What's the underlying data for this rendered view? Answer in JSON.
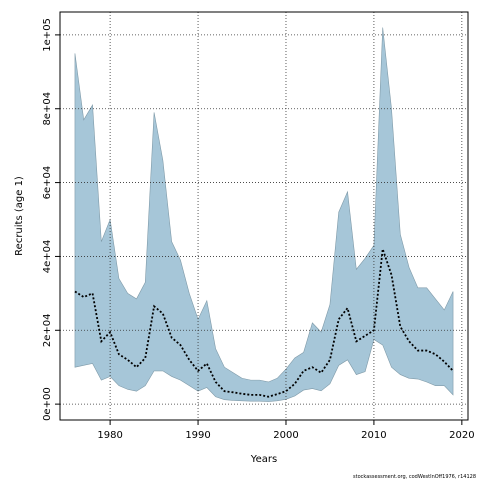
{
  "chart_data": {
    "type": "line",
    "xlabel": "Years",
    "ylabel": "Recruits (age 1)",
    "footnote": "stockassessment.org, codWestInOff1976, r14128",
    "x": [
      1976,
      1977,
      1978,
      1979,
      1980,
      1981,
      1982,
      1983,
      1984,
      1985,
      1986,
      1987,
      1988,
      1989,
      1990,
      1991,
      1992,
      1993,
      1994,
      1995,
      1996,
      1997,
      1998,
      1999,
      2000,
      2001,
      2002,
      2003,
      2004,
      2005,
      2006,
      2007,
      2008,
      2009,
      2010,
      2011,
      2012,
      2013,
      2014,
      2015,
      2016,
      2017,
      2018,
      2019
    ],
    "band": {
      "color": "#a6c6d8",
      "upper": [
        95000,
        77000,
        81000,
        44000,
        50000,
        34000,
        30000,
        28500,
        33000,
        79000,
        66000,
        44000,
        39000,
        30000,
        23000,
        28000,
        15000,
        10000,
        8500,
        7000,
        6500,
        6500,
        6000,
        7000,
        9500,
        12500,
        14000,
        22000,
        19500,
        27000,
        52000,
        57500,
        36500,
        39500,
        43000,
        102000,
        80000,
        46000,
        37000,
        31500,
        31500,
        28500,
        25500,
        30500
      ],
      "lower": [
        10000,
        10500,
        11000,
        6500,
        7500,
        5000,
        4000,
        3500,
        5000,
        9000,
        9000,
        7500,
        6500,
        5000,
        3500,
        4500,
        2000,
        1200,
        1000,
        900,
        800,
        800,
        700,
        900,
        1300,
        2200,
        3800,
        4200,
        3600,
        5500,
        10500,
        12000,
        8000,
        8800,
        17500,
        16000,
        10000,
        8000,
        7000,
        6800,
        6000,
        5000,
        5000,
        2500
      ]
    },
    "series": [
      {
        "color": "#000000",
        "values": [
          30500,
          29000,
          30000,
          17000,
          19500,
          13500,
          12000,
          10000,
          12500,
          26500,
          24500,
          18000,
          16000,
          12000,
          9000,
          11000,
          6000,
          3500,
          3200,
          2800,
          2500,
          2500,
          2000,
          2700,
          3500,
          5500,
          9000,
          10000,
          8500,
          12000,
          23000,
          26000,
          17000,
          18500,
          20000,
          42000,
          35000,
          21000,
          17000,
          14500,
          14500,
          13500,
          11500,
          9000
        ]
      }
    ],
    "xlim": [
      1974.3,
      2020.7
    ],
    "ylim": [
      -4300,
      106200
    ],
    "xticks": [
      1980,
      1990,
      2000,
      2010,
      2020
    ],
    "yticks": [
      {
        "value": 0,
        "label": "0e+00"
      },
      {
        "value": 20000,
        "label": "2e+04"
      },
      {
        "value": 40000,
        "label": "4e+04"
      },
      {
        "value": 60000,
        "label": "6e+04"
      },
      {
        "value": 80000,
        "label": "8e+04"
      },
      {
        "value": 100000,
        "label": "1e+05"
      }
    ],
    "grid": true
  }
}
